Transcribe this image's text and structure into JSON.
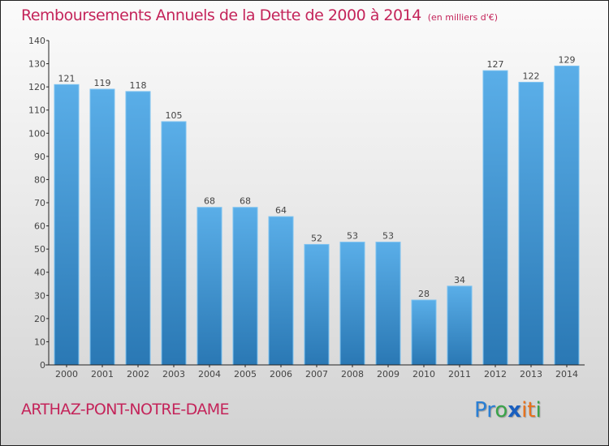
{
  "header": {
    "title": "Remboursements Annuels de la Dette de 2000 à 2014",
    "unit": "(en milliers d'€)"
  },
  "footer": {
    "town": "ARTHAZ-PONT-NOTRE-DAME",
    "logo": [
      "P",
      "r",
      "o",
      "x",
      "i",
      "t",
      "i"
    ],
    "logo_colors": [
      "#2a7fd4",
      "#2a7fd4",
      "#3aa34a",
      "#1a5fbf",
      "#e8701a",
      "#e8701a",
      "#3aa34a"
    ]
  },
  "colors": {
    "bar_top": "#5aaee8",
    "bar_bottom": "#2a78b4",
    "title": "#c4245a"
  },
  "chart_data": {
    "type": "bar",
    "title": "Remboursements Annuels de la Dette de 2000 à 2014 (en milliers d'€)",
    "xlabel": "",
    "ylabel": "",
    "categories": [
      "2000",
      "2001",
      "2002",
      "2003",
      "2004",
      "2005",
      "2006",
      "2007",
      "2008",
      "2009",
      "2010",
      "2011",
      "2012",
      "2013",
      "2014"
    ],
    "values": [
      121,
      119,
      118,
      105,
      68,
      68,
      64,
      52,
      53,
      53,
      28,
      34,
      127,
      122,
      129
    ],
    "ylim": [
      0,
      140
    ],
    "yticks": [
      0,
      10,
      20,
      30,
      40,
      50,
      60,
      70,
      80,
      90,
      100,
      110,
      120,
      130,
      140
    ],
    "grid": false,
    "legend": "none"
  }
}
